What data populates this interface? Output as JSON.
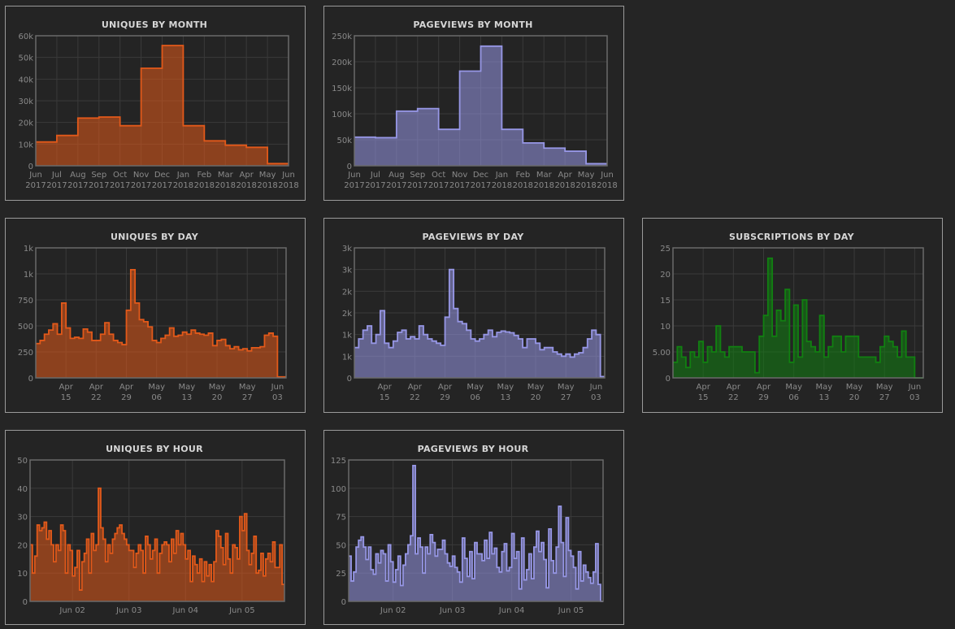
{
  "colors": {
    "uniques": "#e2591a",
    "pageviews": "#9797e6",
    "subscriptions": "#118011",
    "background": "#242424",
    "grid": "#3a3a3a"
  },
  "chart_data": [
    {
      "id": "uniques-month",
      "type": "area",
      "step": true,
      "title": "UNIQUES BY MONTH",
      "color": "#e2591a",
      "x_ticks": [
        [
          "Jun",
          "2017"
        ],
        [
          "Jul",
          "2017"
        ],
        [
          "Aug",
          "2017"
        ],
        [
          "Sep",
          "2017"
        ],
        [
          "Oct",
          "2017"
        ],
        [
          "Nov",
          "2017"
        ],
        [
          "Dec",
          "2017"
        ],
        [
          "Jan",
          "2018"
        ],
        [
          "Feb",
          "2018"
        ],
        [
          "Mar",
          "2018"
        ],
        [
          "Apr",
          "2018"
        ],
        [
          "May",
          "2018"
        ],
        [
          "Jun",
          "2018"
        ]
      ],
      "y_ticks": [
        "0",
        "10k",
        "20k",
        "30k",
        "40k",
        "50k",
        "60k"
      ],
      "ylim": [
        0,
        60000
      ],
      "categories": [
        "Jun 2017",
        "Jul 2017",
        "Aug 2017",
        "Sep 2017",
        "Oct 2017",
        "Nov 2017",
        "Dec 2017",
        "Jan 2018",
        "Feb 2018",
        "Mar 2018",
        "Apr 2018",
        "May 2018"
      ],
      "values": [
        11000,
        14000,
        22000,
        22500,
        18500,
        45000,
        55500,
        18500,
        11500,
        9500,
        8500,
        1000
      ]
    },
    {
      "id": "pageviews-month",
      "type": "area",
      "step": true,
      "title": "PAGEVIEWS BY MONTH",
      "color": "#9797e6",
      "x_ticks": [
        [
          "Jun",
          "2017"
        ],
        [
          "Jul",
          "2017"
        ],
        [
          "Aug",
          "2017"
        ],
        [
          "Sep",
          "2017"
        ],
        [
          "Oct",
          "2017"
        ],
        [
          "Nov",
          "2017"
        ],
        [
          "Dec",
          "2017"
        ],
        [
          "Jan",
          "2018"
        ],
        [
          "Feb",
          "2018"
        ],
        [
          "Mar",
          "2018"
        ],
        [
          "Apr",
          "2018"
        ],
        [
          "May",
          "2018"
        ],
        [
          "Jun",
          "2018"
        ]
      ],
      "y_ticks": [
        "0",
        "50k",
        "100k",
        "150k",
        "200k",
        "250k"
      ],
      "ylim": [
        0,
        250000
      ],
      "categories": [
        "Jun 2017",
        "Jul 2017",
        "Aug 2017",
        "Sep 2017",
        "Oct 2017",
        "Nov 2017",
        "Dec 2017",
        "Jan 2018",
        "Feb 2018",
        "Mar 2018",
        "Apr 2018",
        "May 2018"
      ],
      "values": [
        55000,
        54000,
        105000,
        110000,
        70000,
        182000,
        230000,
        70000,
        44000,
        34000,
        28000,
        4000
      ]
    },
    {
      "id": "uniques-day",
      "type": "area",
      "step": true,
      "title": "UNIQUES BY DAY",
      "color": "#e2591a",
      "x_ticks": [
        [
          "Apr",
          "15"
        ],
        [
          "Apr",
          "22"
        ],
        [
          "Apr",
          "29"
        ],
        [
          "May",
          "06"
        ],
        [
          "May",
          "13"
        ],
        [
          "May",
          "20"
        ],
        [
          "May",
          "27"
        ],
        [
          "Jun",
          "03"
        ]
      ],
      "x_tick_index": [
        7,
        14,
        21,
        28,
        35,
        42,
        49,
        56
      ],
      "y_ticks": [
        "0",
        "250",
        "500",
        "750",
        "1k",
        "1k"
      ],
      "ylim": [
        0,
        1250
      ],
      "values": [
        330,
        360,
        420,
        460,
        520,
        420,
        720,
        480,
        380,
        390,
        380,
        470,
        440,
        360,
        360,
        420,
        530,
        420,
        360,
        340,
        320,
        650,
        1040,
        720,
        560,
        540,
        490,
        360,
        340,
        380,
        410,
        480,
        400,
        410,
        440,
        420,
        460,
        430,
        420,
        410,
        430,
        310,
        360,
        370,
        310,
        280,
        300,
        270,
        280,
        260,
        290,
        290,
        300,
        410,
        430,
        400,
        10,
        10
      ]
    },
    {
      "id": "pageviews-day",
      "type": "area",
      "step": true,
      "title": "PAGEVIEWS BY DAY",
      "color": "#9797e6",
      "x_ticks": [
        [
          "Apr",
          "15"
        ],
        [
          "Apr",
          "22"
        ],
        [
          "Apr",
          "29"
        ],
        [
          "May",
          "06"
        ],
        [
          "May",
          "13"
        ],
        [
          "May",
          "20"
        ],
        [
          "May",
          "27"
        ],
        [
          "Jun",
          "03"
        ]
      ],
      "x_tick_index": [
        7,
        14,
        21,
        28,
        35,
        42,
        49,
        56
      ],
      "y_ticks": [
        "0",
        "1k",
        "1k",
        "2k",
        "2k",
        "3k",
        "3k"
      ],
      "ylim": [
        0,
        3000
      ],
      "values": [
        700,
        900,
        1100,
        1200,
        800,
        1000,
        1550,
        800,
        700,
        850,
        1050,
        1100,
        900,
        950,
        900,
        1200,
        1000,
        900,
        850,
        800,
        750,
        1400,
        2500,
        1600,
        1300,
        1250,
        1100,
        900,
        850,
        900,
        1000,
        1100,
        950,
        1050,
        1080,
        1060,
        1040,
        980,
        900,
        700,
        900,
        900,
        800,
        650,
        700,
        700,
        600,
        550,
        500,
        550,
        480,
        550,
        580,
        700,
        900,
        1100,
        1000,
        30
      ]
    },
    {
      "id": "subscriptions-day",
      "type": "area",
      "step": true,
      "title": "SUBSCRIPTIONS BY DAY",
      "color": "#118011",
      "x_ticks": [
        [
          "Apr",
          "15"
        ],
        [
          "Apr",
          "22"
        ],
        [
          "Apr",
          "29"
        ],
        [
          "May",
          "06"
        ],
        [
          "May",
          "13"
        ],
        [
          "May",
          "20"
        ],
        [
          "May",
          "27"
        ],
        [
          "Jun",
          "03"
        ]
      ],
      "x_tick_index": [
        7,
        14,
        21,
        28,
        35,
        42,
        49,
        56
      ],
      "y_ticks": [
        "0",
        "5.00",
        "10",
        "15",
        "20",
        "25"
      ],
      "ylim": [
        0,
        25
      ],
      "values": [
        3,
        6,
        4,
        2,
        5,
        4,
        7,
        3,
        6,
        5,
        10,
        5,
        4,
        6,
        6,
        6,
        5,
        5,
        5,
        1,
        8,
        12,
        23,
        8,
        13,
        11,
        17,
        3,
        14,
        4,
        15,
        7,
        6,
        5,
        12,
        4,
        6,
        8,
        8,
        5,
        8,
        8,
        8,
        4,
        4,
        4,
        4,
        3,
        6,
        8,
        7,
        6,
        4,
        9,
        4,
        4,
        0,
        0
      ]
    },
    {
      "id": "uniques-hour",
      "type": "area",
      "step": true,
      "title": "UNIQUES BY HOUR",
      "color": "#e2591a",
      "x_ticks": [
        [
          "Jun 02",
          ""
        ],
        [
          "Jun 03",
          ""
        ],
        [
          "Jun 04",
          ""
        ],
        [
          "Jun 05",
          ""
        ]
      ],
      "x_tick_index": [
        18,
        42,
        66,
        90
      ],
      "y_ticks": [
        "0",
        "10",
        "20",
        "30",
        "40",
        "50"
      ],
      "ylim": [
        0,
        50
      ],
      "values": [
        20,
        10,
        16,
        27,
        25,
        26,
        28,
        22,
        25,
        20,
        14,
        20,
        18,
        27,
        25,
        10,
        20,
        18,
        9,
        12,
        18,
        4,
        14,
        17,
        22,
        10,
        24,
        18,
        20,
        40,
        26,
        22,
        14,
        20,
        17,
        22,
        24,
        26,
        27,
        24,
        22,
        20,
        18,
        18,
        12,
        17,
        20,
        18,
        10,
        23,
        20,
        15,
        18,
        22,
        10,
        17,
        20,
        21,
        20,
        14,
        22,
        17,
        25,
        20,
        24,
        20,
        15,
        18,
        7,
        16,
        13,
        10,
        15,
        7,
        14,
        9,
        13,
        7,
        14,
        25,
        23,
        19,
        13,
        24,
        15,
        10,
        20,
        19,
        15,
        30,
        25,
        31,
        18,
        13,
        17,
        23,
        10,
        11,
        17,
        9,
        15,
        17,
        14,
        21,
        12,
        12,
        20,
        6
      ]
    },
    {
      "id": "pageviews-hour",
      "type": "area",
      "step": true,
      "title": "PAGEVIEWS BY HOUR",
      "color": "#9797e6",
      "x_ticks": [
        [
          "Jun 02",
          ""
        ],
        [
          "Jun 03",
          ""
        ],
        [
          "Jun 04",
          ""
        ],
        [
          "Jun 05",
          ""
        ]
      ],
      "x_tick_index": [
        18,
        42,
        66,
        90
      ],
      "y_ticks": [
        "0",
        "25",
        "50",
        "75",
        "100",
        "125"
      ],
      "ylim": [
        0,
        125
      ],
      "values": [
        40,
        18,
        26,
        48,
        54,
        57,
        48,
        37,
        48,
        28,
        24,
        42,
        34,
        45,
        42,
        18,
        50,
        35,
        17,
        28,
        40,
        14,
        32,
        42,
        50,
        58,
        120,
        42,
        56,
        48,
        25,
        48,
        42,
        59,
        52,
        40,
        46,
        46,
        54,
        42,
        34,
        31,
        40,
        30,
        26,
        17,
        56,
        38,
        22,
        44,
        20,
        52,
        42,
        42,
        36,
        54,
        38,
        61,
        42,
        47,
        30,
        26,
        44,
        51,
        27,
        30,
        60,
        38,
        44,
        11,
        56,
        19,
        28,
        42,
        20,
        48,
        62,
        44,
        52,
        37,
        12,
        64,
        36,
        25,
        48,
        84,
        52,
        22,
        74,
        45,
        40,
        30,
        11,
        44,
        18,
        32,
        26,
        21,
        16,
        26,
        51,
        15,
        0
      ]
    }
  ]
}
